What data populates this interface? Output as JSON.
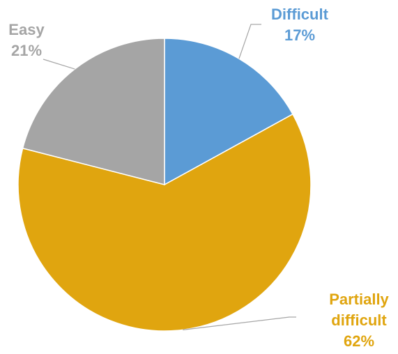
{
  "chart_data": {
    "type": "pie",
    "categories": [
      "Difficult",
      "Partially difficult",
      "Easy"
    ],
    "values": [
      17,
      62,
      21
    ],
    "value_labels": [
      "17%",
      "62%",
      "21%"
    ],
    "colors": [
      "#5b9bd5",
      "#e0a50f",
      "#a5a5a5"
    ]
  }
}
